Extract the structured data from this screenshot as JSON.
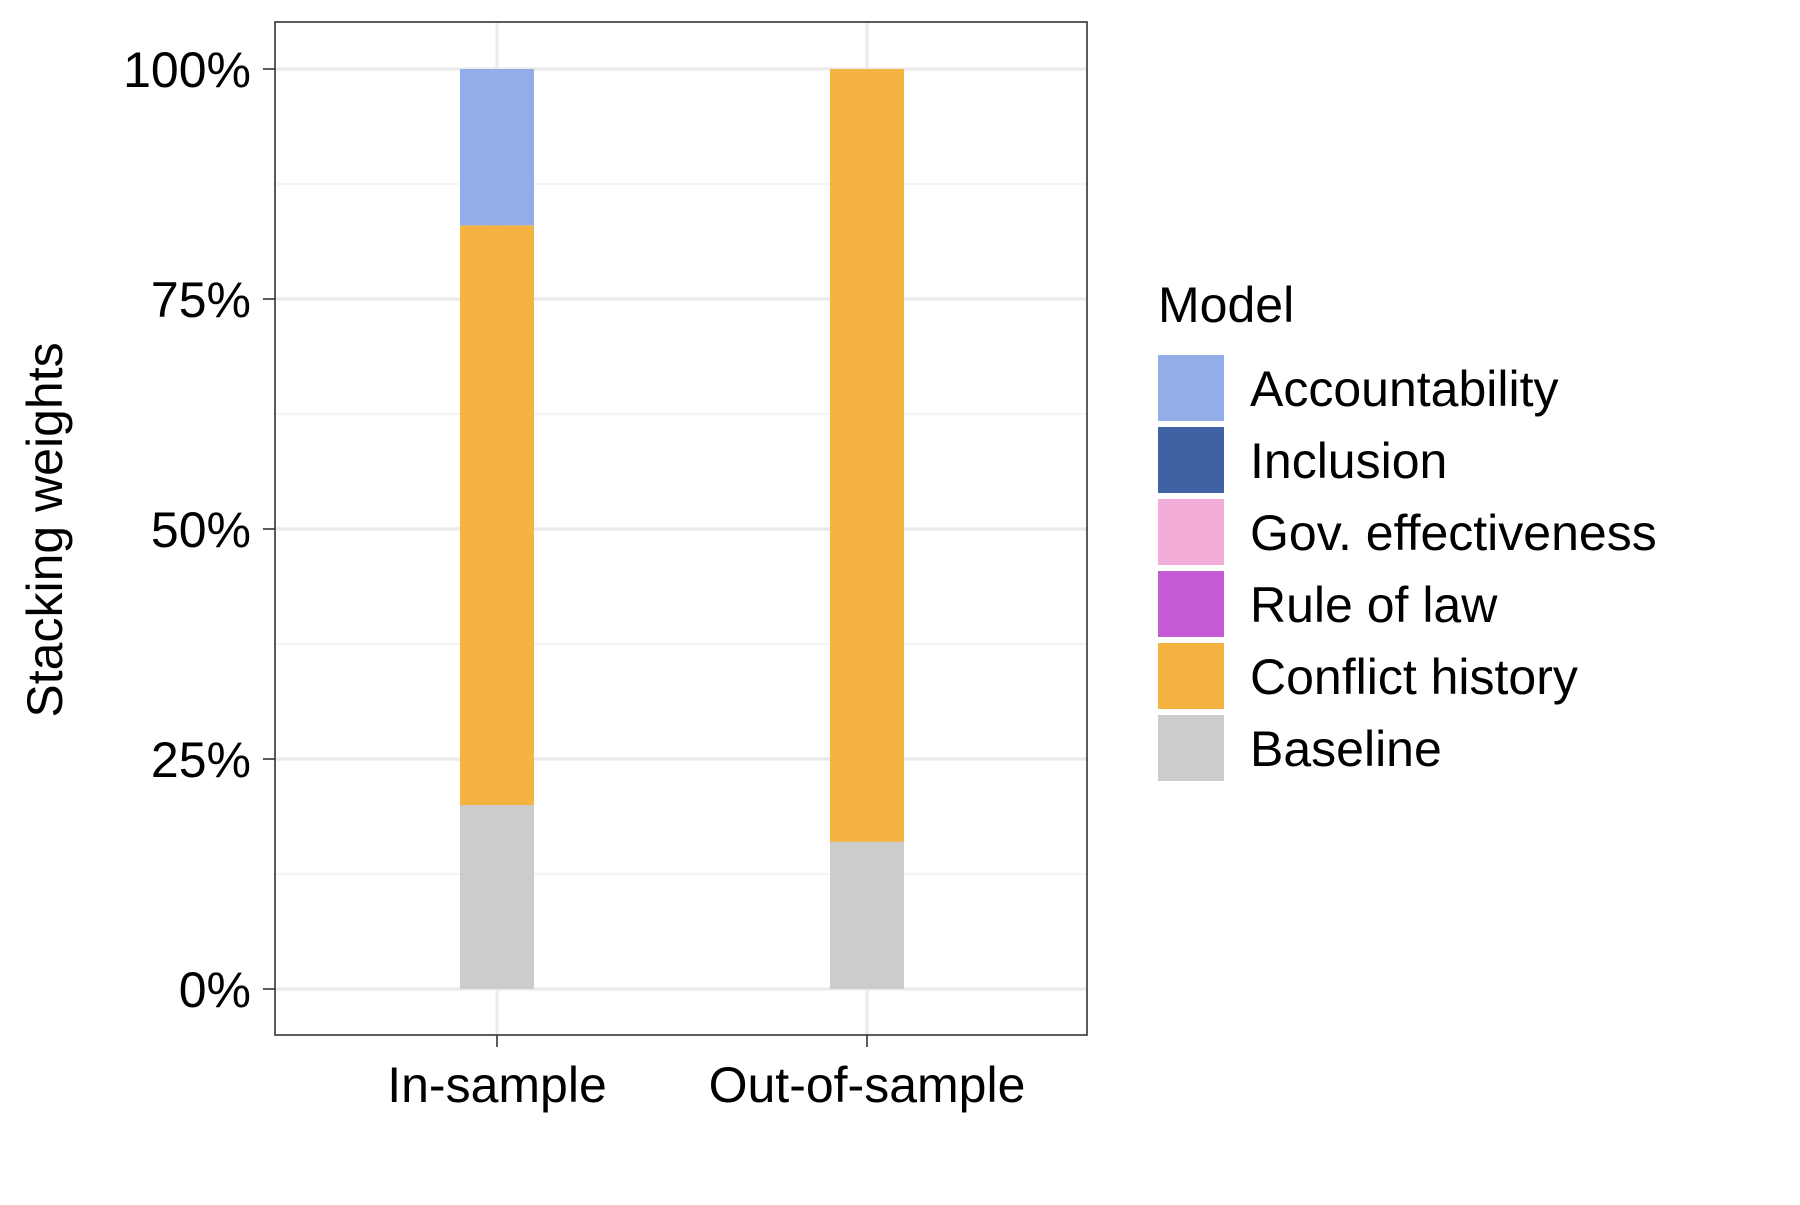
{
  "chart_data": {
    "type": "bar",
    "stacked": true,
    "title": "",
    "xlabel": "",
    "ylabel": "Stacking weights",
    "ylim": [
      0,
      1.05
    ],
    "y_ticks": [
      0,
      0.25,
      0.5,
      0.75,
      1.0
    ],
    "y_tick_labels": [
      "0%",
      "25%",
      "50%",
      "75%",
      "100%"
    ],
    "grid": true,
    "categories": [
      "In-sample",
      "Out-of-sample"
    ],
    "series": [
      {
        "name": "Accountability",
        "color": "#92AEE8",
        "values": [
          0.17,
          0.0
        ]
      },
      {
        "name": "Inclusion",
        "color": "#3E62A3",
        "values": [
          0.0,
          0.0
        ]
      },
      {
        "name": "Gov. effectiveness",
        "color": "#F2AED9",
        "values": [
          0.0,
          0.0
        ]
      },
      {
        "name": "Rule of law",
        "color": "#C45AD4",
        "values": [
          0.0,
          0.0
        ]
      },
      {
        "name": "Conflict history",
        "color": "#F5B342",
        "values": [
          0.63,
          0.84
        ]
      },
      {
        "name": "Baseline",
        "color": "#CCCCCC",
        "values": [
          0.2,
          0.16
        ]
      }
    ],
    "legend": {
      "title": "Model",
      "position": "right"
    }
  }
}
